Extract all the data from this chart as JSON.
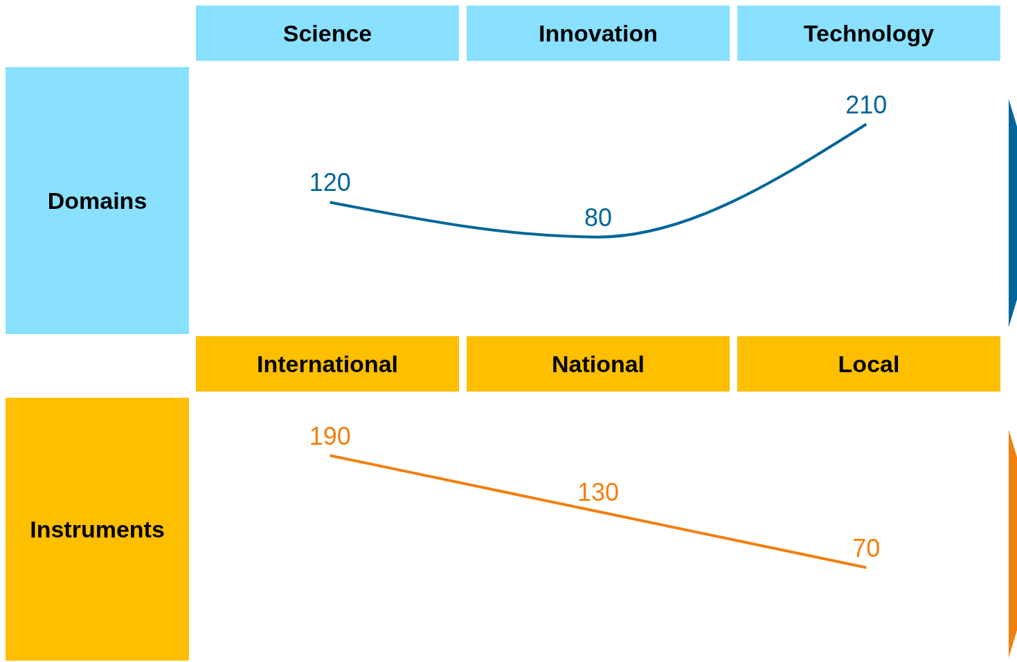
{
  "chart_data": [
    {
      "type": "line",
      "ylabel": "Domains",
      "categories": [
        "Science",
        "Innovation",
        "Technology"
      ],
      "values": [
        120,
        80,
        210
      ],
      "color": "#006699",
      "data_labels": true
    },
    {
      "type": "line",
      "ylabel": "Instruments",
      "categories": [
        "International",
        "National",
        "Local"
      ],
      "values": [
        190,
        130,
        70
      ],
      "color": "#f08010",
      "data_labels": true
    }
  ]
}
